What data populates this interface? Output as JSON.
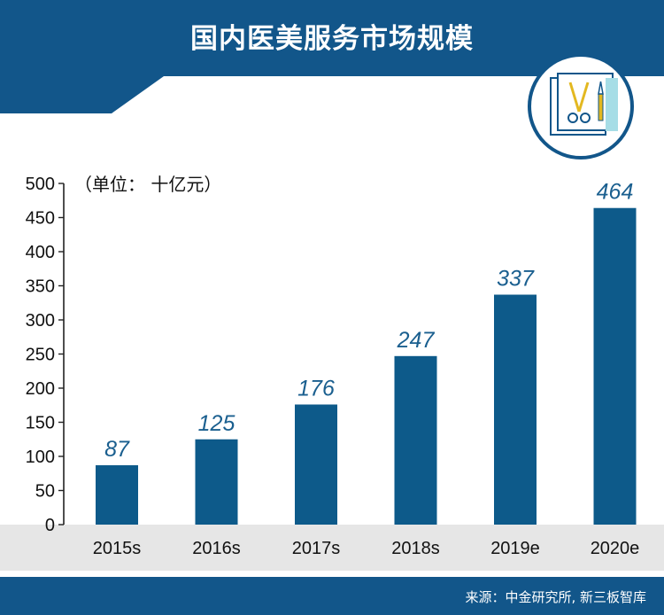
{
  "header": {
    "title": "国内医美服务市场规模"
  },
  "icon": {
    "name": "surgical-tools-icon"
  },
  "chart_data": {
    "type": "bar",
    "title": "国内医美服务市场规模",
    "unit_label": "（单位： 十亿元）",
    "categories": [
      "2015s",
      "2016s",
      "2017s",
      "2018s",
      "2019e",
      "2020e"
    ],
    "values": [
      87,
      125,
      176,
      247,
      337,
      464
    ],
    "ylim": [
      0,
      500
    ],
    "yticks": [
      0,
      50,
      100,
      150,
      200,
      250,
      300,
      350,
      400,
      450,
      500
    ],
    "xlabel": "",
    "ylabel": "",
    "data_labels": [
      "87",
      "125",
      "176",
      "247",
      "337",
      "464"
    ],
    "bar_color": "#0d5a8a",
    "label_color": "#1a5f8f"
  },
  "footer": {
    "source": "来源：中金研究所, 新三板智库"
  },
  "colors": {
    "brand": "#12568a",
    "axis_band": "#e6e6e6"
  }
}
